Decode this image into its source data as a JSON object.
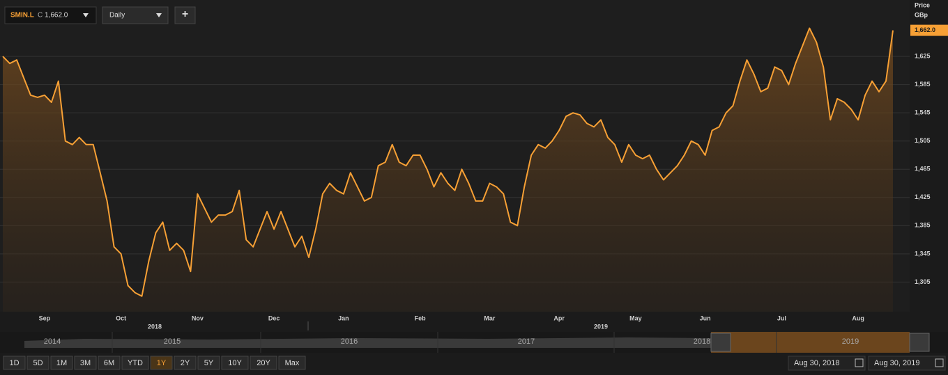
{
  "chart_data": {
    "type": "line",
    "series": [
      {
        "name": "SMIN.L",
        "color": "#f7a035",
        "values": [
          1625,
          1615,
          1620,
          1595,
          1570,
          1567,
          1570,
          1560,
          1590,
          1505,
          1500,
          1510,
          1500,
          1500,
          1460,
          1420,
          1355,
          1345,
          1300,
          1290,
          1285,
          1335,
          1375,
          1390,
          1350,
          1360,
          1350,
          1320,
          1430,
          1410,
          1390,
          1400,
          1400,
          1405,
          1435,
          1365,
          1355,
          1380,
          1405,
          1380,
          1405,
          1380,
          1355,
          1370,
          1340,
          1380,
          1430,
          1445,
          1435,
          1430,
          1460,
          1440,
          1420,
          1425,
          1470,
          1475,
          1500,
          1475,
          1470,
          1485,
          1485,
          1465,
          1440,
          1460,
          1445,
          1435,
          1465,
          1445,
          1420,
          1420,
          1445,
          1440,
          1430,
          1390,
          1385,
          1440,
          1485,
          1500,
          1495,
          1505,
          1520,
          1540,
          1545,
          1542,
          1530,
          1525,
          1535,
          1510,
          1500,
          1475,
          1500,
          1485,
          1480,
          1485,
          1465,
          1450,
          1460,
          1470,
          1485,
          1505,
          1500,
          1485,
          1520,
          1525,
          1545,
          1555,
          1590,
          1620,
          1600,
          1575,
          1580,
          1610,
          1605,
          1585,
          1615,
          1640,
          1665,
          1645,
          1610,
          1535,
          1565,
          1560,
          1550,
          1535,
          1570,
          1590,
          1575,
          1590,
          1662
        ]
      }
    ],
    "categories": [
      null,
      null,
      null,
      null,
      null,
      null,
      "Sep",
      null,
      null,
      null,
      null,
      null,
      null,
      null,
      null,
      null,
      null,
      "Oct",
      null,
      null,
      null,
      null,
      null,
      null,
      null,
      null,
      null,
      null,
      "Nov",
      null,
      null,
      null,
      null,
      null,
      null,
      null,
      null,
      null,
      null,
      "Dec",
      null,
      null,
      null,
      null,
      null,
      null,
      null,
      null,
      null,
      "Jan",
      null,
      null,
      null,
      null,
      null,
      null,
      null,
      null,
      null,
      null,
      "Feb",
      null,
      null,
      null,
      null,
      null,
      null,
      null,
      null,
      null,
      "Mar",
      null,
      null,
      null,
      null,
      null,
      null,
      null,
      null,
      null,
      "Apr",
      null,
      null,
      null,
      null,
      null,
      null,
      null,
      null,
      null,
      null,
      "May",
      null,
      null,
      null,
      null,
      null,
      null,
      null,
      null,
      null,
      "Jun",
      null,
      null,
      null,
      null,
      null,
      null,
      null,
      null,
      null,
      null,
      "Jul",
      null,
      null,
      null,
      null,
      null,
      null,
      null,
      null,
      null,
      null,
      "Aug",
      null,
      null,
      null,
      null,
      null
    ],
    "year_labels": [
      "2018",
      "2019"
    ],
    "ylim": [
      1263,
      1705
    ],
    "yticks": [
      {
        "value": 1305,
        "label": "1,305"
      },
      {
        "value": 1345,
        "label": "1,345"
      },
      {
        "value": 1385,
        "label": "1,385"
      },
      {
        "value": 1425,
        "label": "1,425"
      },
      {
        "value": 1465,
        "label": "1,465"
      },
      {
        "value": 1505,
        "label": "1,505"
      },
      {
        "value": 1545,
        "label": "1,545"
      },
      {
        "value": 1585,
        "label": "1,585"
      },
      {
        "value": 1625,
        "label": "1,625"
      }
    ],
    "grid": true,
    "y_axis_title": "Price",
    "y_axis_unit": "GBp",
    "last_value_label": "1,662.0"
  },
  "ui": {
    "close_label": "C",
    "interval": "Daily",
    "add_button": "+",
    "ranges": [
      "1D",
      "5D",
      "1M",
      "3M",
      "6M",
      "YTD",
      "1Y",
      "2Y",
      "5Y",
      "10Y",
      "20Y",
      "Max"
    ],
    "selected_range": "1Y",
    "navigator_years": [
      "2014",
      "2015",
      "2016",
      "2017",
      "2018",
      "2019"
    ],
    "start_date": "Aug 30, 2018",
    "end_date": "Aug 30, 2019"
  }
}
